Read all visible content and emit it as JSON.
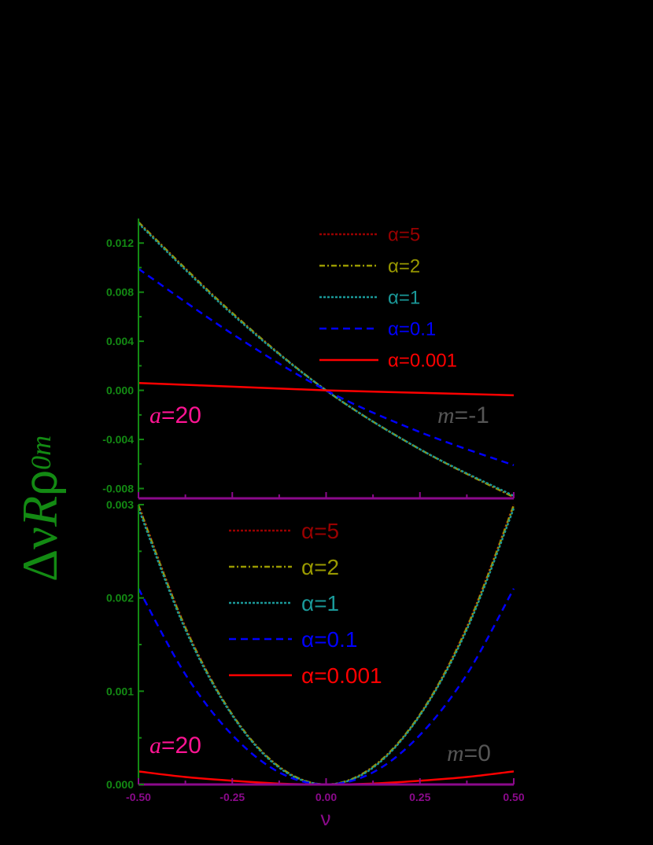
{
  "chart_data": [
    {
      "type": "line",
      "panel": "top",
      "annotation_left": {
        "symbol": "a",
        "text": "=20",
        "color": "#ff1493"
      },
      "annotation_right": {
        "symbol": "m",
        "text": "=-1",
        "color": "#555555"
      },
      "xlabel": "",
      "ylabel": "ΔνRρ0m",
      "xlim": [
        -0.5,
        0.5
      ],
      "ylim": [
        -0.0088,
        0.014
      ],
      "yticks": [
        "0.012",
        "0.008",
        "0.004",
        "0.000",
        "-0.004",
        "-0.008"
      ],
      "ytick_values": [
        0.012,
        0.008,
        0.004,
        0.0,
        -0.004,
        -0.008
      ],
      "x": [
        -0.5,
        -0.25,
        0.0,
        0.25,
        0.5
      ],
      "series": [
        {
          "name": "α=5",
          "color": "#990000",
          "dash": "dot",
          "values": [
            0.0137,
            0.0063,
            0.0,
            -0.0048,
            -0.0087
          ]
        },
        {
          "name": "α=2",
          "color": "#999900",
          "dash": "dashdot",
          "values": [
            0.0137,
            0.0063,
            0.0,
            -0.0048,
            -0.0087
          ]
        },
        {
          "name": "α=1",
          "color": "#1a9999",
          "dash": "dot",
          "values": [
            0.0136,
            0.0062,
            0.0,
            -0.0048,
            -0.0086
          ]
        },
        {
          "name": "α=0.1",
          "color": "#0000ff",
          "dash": "dash",
          "values": [
            0.0099,
            0.0046,
            0.0,
            -0.0034,
            -0.0061
          ]
        },
        {
          "name": "α=0.001",
          "color": "#ff0000",
          "dash": "solid",
          "values": [
            0.0006,
            0.0003,
            0.0,
            -0.0002,
            -0.0004
          ]
        }
      ],
      "legend": [
        "α=5",
        "α=2",
        "α=1",
        "α=0.1",
        "α=0.001"
      ],
      "legend_position": "upper right",
      "grid": false
    },
    {
      "type": "line",
      "panel": "bottom",
      "annotation_left": {
        "symbol": "a",
        "text": "=20",
        "color": "#ff1493"
      },
      "annotation_right": {
        "symbol": "m",
        "text": "=0",
        "color": "#555555"
      },
      "xlabel": "ν",
      "ylabel": "ΔνRρ0m",
      "xlim": [
        -0.5,
        0.5
      ],
      "ylim": [
        0.0,
        0.003
      ],
      "xticks": [
        "-0.50",
        "-0.25",
        "0.00",
        "0.25",
        "0.50"
      ],
      "yticks": [
        "0.003",
        "0.002",
        "0.001",
        "0.000"
      ],
      "ytick_values": [
        0.003,
        0.002,
        0.001,
        0.0
      ],
      "x": [
        -0.5,
        -0.375,
        -0.25,
        -0.125,
        0.0,
        0.125,
        0.25,
        0.375,
        0.5
      ],
      "series": [
        {
          "name": "α=5",
          "color": "#990000",
          "dash": "dot",
          "values": [
            0.003,
            0.00169,
            0.00075,
            0.00019,
            0.0,
            0.00019,
            0.00075,
            0.00169,
            0.003
          ]
        },
        {
          "name": "α=2",
          "color": "#999900",
          "dash": "dashdot",
          "values": [
            0.00299,
            0.00168,
            0.00075,
            0.00019,
            0.0,
            0.00019,
            0.00075,
            0.00168,
            0.00299
          ]
        },
        {
          "name": "α=1",
          "color": "#1a9999",
          "dash": "dot",
          "values": [
            0.00296,
            0.00166,
            0.00074,
            0.00018,
            0.0,
            0.00018,
            0.00074,
            0.00166,
            0.00296
          ]
        },
        {
          "name": "α=0.1",
          "color": "#0000ff",
          "dash": "dash",
          "values": [
            0.0021,
            0.00118,
            0.00053,
            0.00013,
            0.0,
            0.00013,
            0.00053,
            0.00118,
            0.0021
          ]
        },
        {
          "name": "α=0.001",
          "color": "#ff0000",
          "dash": "solid",
          "values": [
            0.00014,
            8e-05,
            4e-05,
            1e-05,
            0.0,
            1e-05,
            4e-05,
            8e-05,
            0.00014
          ]
        }
      ],
      "legend": [
        "α=5",
        "α=2",
        "α=1",
        "α=0.1",
        "α=0.001"
      ],
      "legend_position": "upper center",
      "grid": false
    }
  ],
  "axis_labels": {
    "y_main": "Δν",
    "y_R": "R",
    "y_rho": "ρ",
    "y_sub": "0m",
    "x": "ν"
  },
  "colors": {
    "y_axis": "#138a13",
    "x_axis": "#8b0a8b",
    "background": "#000000"
  }
}
